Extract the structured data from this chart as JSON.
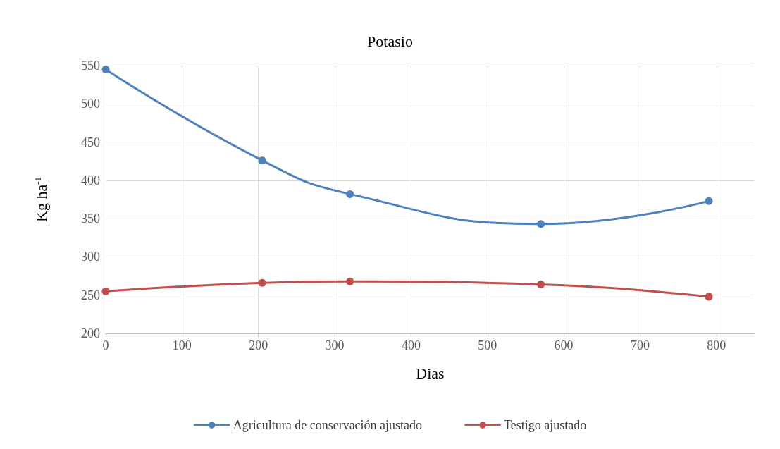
{
  "chart_data": {
    "type": "line",
    "title": "Potasio",
    "xlabel": "Dias",
    "ylabel": "Kg ha$^{-1}$",
    "xlim": [
      0,
      850
    ],
    "xticks": [
      0,
      100,
      200,
      300,
      400,
      500,
      600,
      700,
      800
    ],
    "ylim": [
      200,
      550
    ],
    "yticks": [
      200,
      250,
      300,
      350,
      400,
      450,
      500,
      550
    ],
    "grid": true,
    "legend": "bottom",
    "marker": "circle",
    "line_style": "solid",
    "series": [
      {
        "name": "Agricultura de conservación ajustado",
        "color": "#4f81bd",
        "x": [
          0,
          205,
          320,
          570,
          790
        ],
        "values": [
          545,
          426,
          382,
          343,
          373
        ]
      },
      {
        "name": "Testigo ajustado",
        "color": "#c0504d",
        "x": [
          0,
          205,
          320,
          570,
          790
        ],
        "values": [
          255,
          266,
          268,
          264,
          248
        ]
      }
    ]
  }
}
